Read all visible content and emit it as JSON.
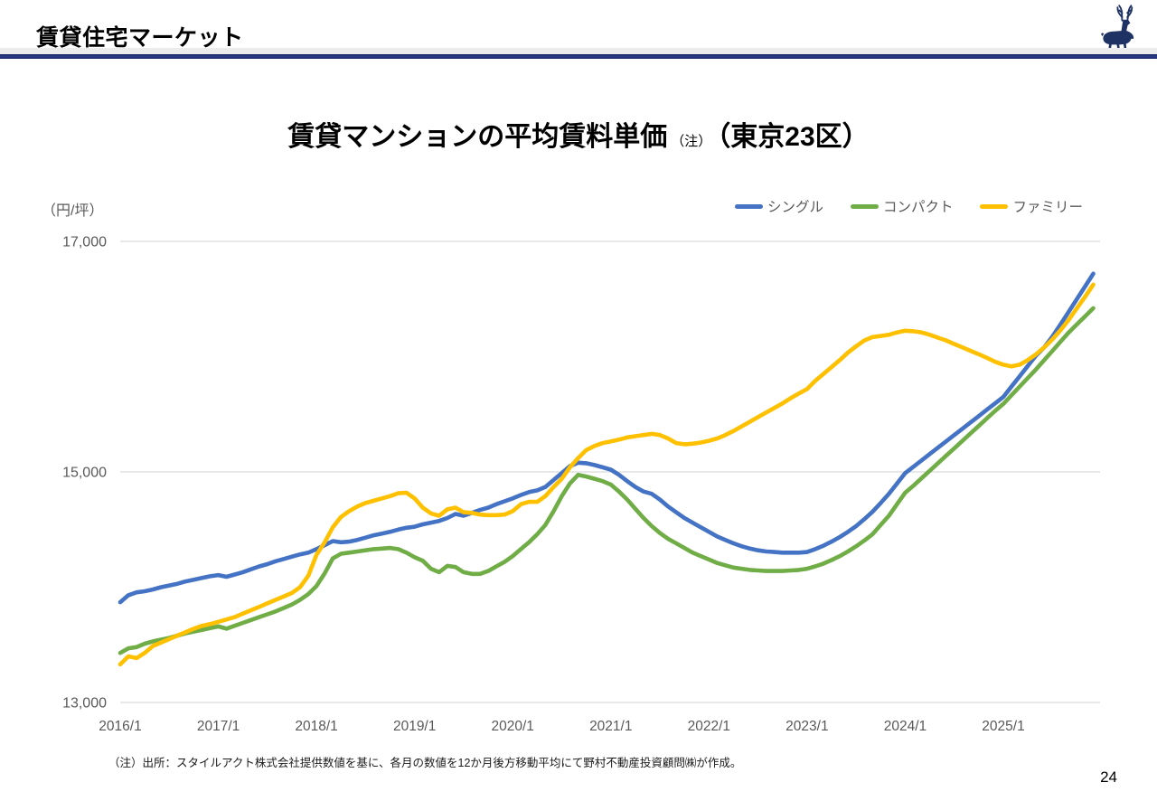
{
  "header": {
    "title": "賃貸住宅マーケット",
    "logo": "deer-logo"
  },
  "chart": {
    "title_main": "賃貸マンションの平均賃料単価",
    "title_note": "（注）",
    "title_area": "（東京23区）",
    "unit_label": "（円/坪）"
  },
  "footnote": "（注）出所：スタイルアクト株式会社提供数値を基に、各月の数値を12か月後方移動平均にて野村不動産投資顧問㈱が作成。",
  "page_number": "24",
  "chart_data": {
    "type": "line",
    "title": "賃貸マンションの平均賃料単価（注）（東京23区）",
    "ylabel": "円/坪",
    "ylim": [
      13000,
      17000
    ],
    "y_ticks": [
      13000,
      15000,
      17000
    ],
    "y_tick_labels": [
      "13,000",
      "15,000",
      "17,000"
    ],
    "x_start": "2016/1",
    "x_frequency": "monthly",
    "x_ticks_month_index": [
      0,
      12,
      24,
      36,
      48,
      60,
      72,
      84,
      96,
      108
    ],
    "x_tick_labels": [
      "2016/1",
      "2017/1",
      "2018/1",
      "2019/1",
      "2020/1",
      "2021/1",
      "2022/1",
      "2023/1",
      "2024/1",
      "2025/1"
    ],
    "grid": "horizontal-only",
    "legend_position": "top-right",
    "series": [
      {
        "name": "シングル",
        "color": "#4472C4",
        "values": [
          13870,
          13930,
          13955,
          13965,
          13980,
          14000,
          14015,
          14030,
          14050,
          14065,
          14080,
          14095,
          14105,
          14090,
          14110,
          14130,
          14155,
          14180,
          14200,
          14225,
          14245,
          14265,
          14285,
          14300,
          14330,
          14365,
          14400,
          14390,
          14395,
          14410,
          14430,
          14450,
          14465,
          14480,
          14500,
          14515,
          14525,
          14545,
          14560,
          14575,
          14600,
          14635,
          14620,
          14645,
          14670,
          14690,
          14720,
          14745,
          14770,
          14800,
          14825,
          14840,
          14870,
          14930,
          14990,
          15050,
          15080,
          15075,
          15060,
          15040,
          15020,
          14975,
          14920,
          14870,
          14830,
          14810,
          14760,
          14700,
          14650,
          14600,
          14560,
          14520,
          14480,
          14440,
          14410,
          14380,
          14355,
          14335,
          14320,
          14310,
          14305,
          14300,
          14300,
          14300,
          14305,
          14330,
          14360,
          14395,
          14435,
          14480,
          14530,
          14590,
          14655,
          14730,
          14810,
          14900,
          14990,
          15045,
          15100,
          15155,
          15210,
          15265,
          15320,
          15375,
          15430,
          15485,
          15540,
          15595,
          15650,
          15740,
          15830,
          15920,
          16010,
          16080,
          16175,
          16280,
          16390,
          16500,
          16610,
          16720
        ]
      },
      {
        "name": "コンパクト",
        "color": "#70AD47",
        "values": [
          13430,
          13470,
          13480,
          13510,
          13530,
          13545,
          13560,
          13580,
          13600,
          13615,
          13630,
          13645,
          13660,
          13640,
          13665,
          13690,
          13715,
          13740,
          13765,
          13790,
          13820,
          13850,
          13890,
          13940,
          14010,
          14120,
          14250,
          14290,
          14300,
          14310,
          14320,
          14330,
          14335,
          14340,
          14330,
          14300,
          14260,
          14230,
          14160,
          14130,
          14185,
          14175,
          14130,
          14115,
          14115,
          14140,
          14180,
          14220,
          14270,
          14330,
          14390,
          14460,
          14540,
          14660,
          14790,
          14900,
          14975,
          14960,
          14940,
          14920,
          14890,
          14830,
          14760,
          14680,
          14600,
          14530,
          14470,
          14420,
          14380,
          14340,
          14300,
          14270,
          14240,
          14210,
          14190,
          14170,
          14160,
          14150,
          14145,
          14140,
          14140,
          14140,
          14145,
          14150,
          14160,
          14180,
          14205,
          14235,
          14270,
          14310,
          14355,
          14405,
          14460,
          14540,
          14620,
          14720,
          14820,
          14880,
          14945,
          15010,
          15075,
          15140,
          15205,
          15270,
          15335,
          15400,
          15465,
          15530,
          15590,
          15665,
          15740,
          15815,
          15890,
          15970,
          16050,
          16130,
          16210,
          16280,
          16350,
          16420
        ]
      },
      {
        "name": "ファミリー",
        "color": "#FFC000",
        "values": [
          13330,
          13400,
          13385,
          13430,
          13490,
          13520,
          13550,
          13580,
          13610,
          13640,
          13665,
          13680,
          13700,
          13720,
          13740,
          13770,
          13800,
          13830,
          13860,
          13890,
          13920,
          13950,
          14000,
          14100,
          14280,
          14390,
          14520,
          14610,
          14660,
          14700,
          14730,
          14750,
          14770,
          14790,
          14815,
          14820,
          14770,
          14690,
          14640,
          14620,
          14675,
          14690,
          14650,
          14645,
          14630,
          14625,
          14625,
          14630,
          14660,
          14720,
          14740,
          14740,
          14790,
          14870,
          14940,
          15040,
          15120,
          15190,
          15225,
          15250,
          15265,
          15280,
          15300,
          15310,
          15320,
          15330,
          15320,
          15290,
          15250,
          15240,
          15245,
          15255,
          15270,
          15290,
          15320,
          15355,
          15395,
          15435,
          15475,
          15515,
          15555,
          15595,
          15640,
          15680,
          15720,
          15790,
          15850,
          15910,
          15970,
          16035,
          16090,
          16140,
          16170,
          16180,
          16190,
          16210,
          16225,
          16220,
          16210,
          16190,
          16165,
          16140,
          16110,
          16080,
          16050,
          16020,
          15990,
          15955,
          15930,
          15915,
          15930,
          15970,
          16020,
          16080,
          16150,
          16230,
          16320,
          16420,
          16520,
          16625
        ]
      }
    ]
  }
}
